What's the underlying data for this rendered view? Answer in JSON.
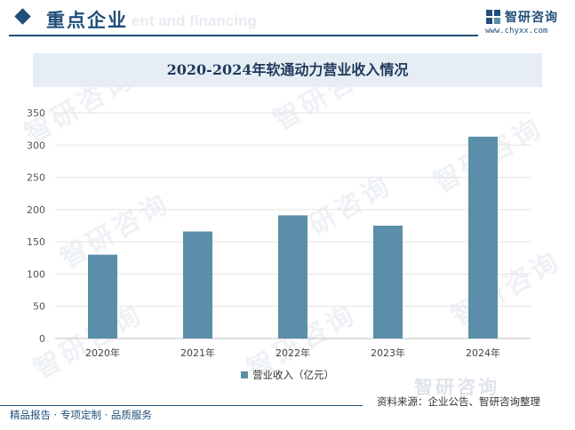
{
  "header": {
    "section_title": "重点企业",
    "section_ghost": "ent and financing",
    "logo_text": "智研咨询",
    "logo_url": "www.chyxx.com"
  },
  "watermark_text": "智研咨询",
  "chart_data": {
    "type": "bar",
    "title": "2020-2024年软通动力营业收入情况",
    "categories": [
      "2020年",
      "2021年",
      "2022年",
      "2023年",
      "2024年"
    ],
    "series": [
      {
        "name": "营业收入（亿元）",
        "values": [
          130,
          166,
          191,
          175,
          313
        ],
        "color": "#5b8ea9"
      }
    ],
    "ylim": [
      0,
      350
    ],
    "yticks": [
      0,
      50,
      100,
      150,
      200,
      250,
      300,
      350
    ],
    "grid": true,
    "legend_position": "bottom"
  },
  "footer": {
    "logo_text": "智研咨询",
    "source": "资料来源：企业公告、智研咨询整理",
    "slogan": "精品报告 · 专项定制 · 品质服务"
  }
}
